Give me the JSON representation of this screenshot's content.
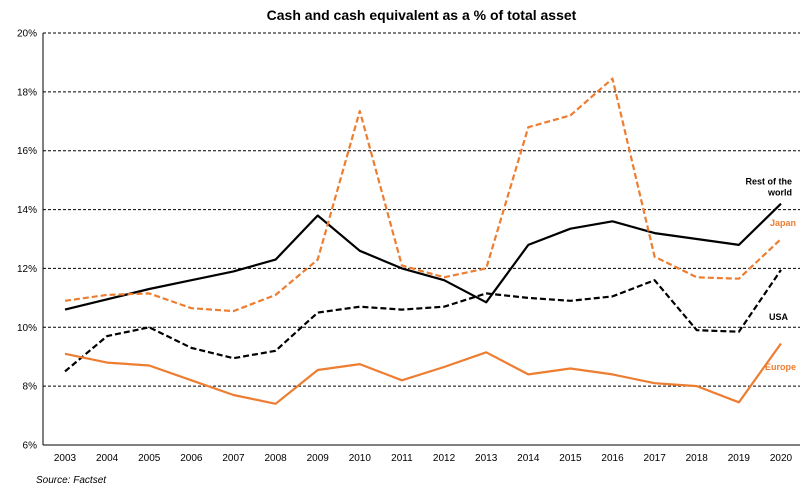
{
  "chart_data": {
    "type": "line",
    "title": "Cash and cash equivalent as a % of total asset",
    "xlabel": "",
    "ylabel": "",
    "x": [
      "2003",
      "2004",
      "2005",
      "2006",
      "2007",
      "2008",
      "2009",
      "2010",
      "2011",
      "2012",
      "2013",
      "2014",
      "2015",
      "2016",
      "2017",
      "2018",
      "2019",
      "2020"
    ],
    "ylim": [
      6,
      20
    ],
    "yticks": [
      "6%",
      "8%",
      "10%",
      "12%",
      "14%",
      "16%",
      "18%",
      "20%"
    ],
    "grid": "horizontal-dashed",
    "series": [
      {
        "name": "Rest of the world",
        "color": "#000000",
        "style": "solid",
        "values": [
          10.6,
          10.95,
          11.3,
          11.6,
          11.9,
          12.3,
          13.8,
          12.6,
          12.0,
          11.6,
          10.85,
          12.8,
          13.35,
          13.6,
          13.2,
          13.0,
          12.8,
          14.2
        ]
      },
      {
        "name": "Japan",
        "color": "#ED7D31",
        "style": "dashed",
        "values": [
          10.9,
          11.1,
          11.15,
          10.65,
          10.55,
          11.1,
          12.3,
          17.35,
          12.1,
          11.7,
          12.0,
          16.8,
          17.2,
          18.45,
          12.4,
          11.7,
          11.65,
          13.0
        ]
      },
      {
        "name": "USA",
        "color": "#000000",
        "style": "dashed",
        "values": [
          8.5,
          9.7,
          10.0,
          9.3,
          8.95,
          9.2,
          10.5,
          10.7,
          10.6,
          10.7,
          11.15,
          11.0,
          10.9,
          11.05,
          11.6,
          9.9,
          9.85,
          11.95
        ]
      },
      {
        "name": "Europe",
        "color": "#ED7D31",
        "style": "solid",
        "values": [
          9.1,
          8.8,
          8.7,
          8.2,
          7.7,
          7.4,
          8.55,
          8.75,
          8.2,
          8.65,
          9.15,
          8.4,
          8.6,
          8.4,
          8.1,
          8.0,
          7.45,
          9.45
        ]
      }
    ],
    "source": "Source: Factset"
  }
}
